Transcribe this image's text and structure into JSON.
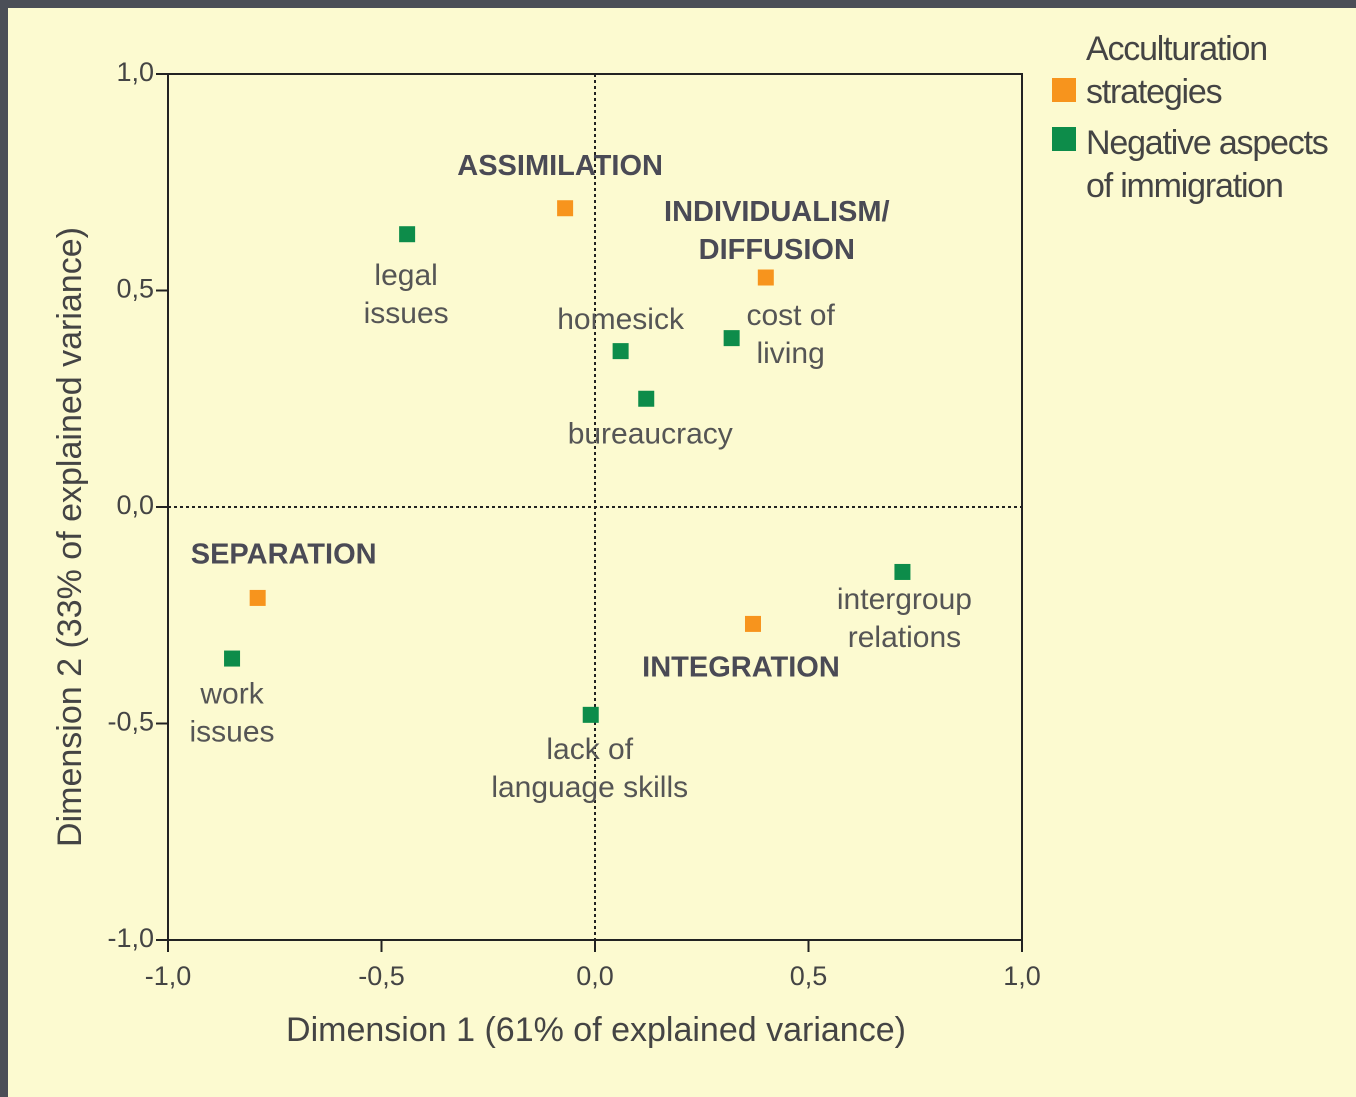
{
  "chart_data": {
    "type": "scatter",
    "x_label": "Dimension 1 (61% of explained variance)",
    "y_label": "Dimension 2 (33% of explained variance)",
    "xlim": [
      -1.0,
      1.0
    ],
    "ylim": [
      -1.0,
      1.0
    ],
    "xticks": [
      {
        "value": -1.0,
        "label": "-1,0"
      },
      {
        "value": -0.5,
        "label": "-0,5"
      },
      {
        "value": 0,
        "label": "0,0"
      },
      {
        "value": 0.5,
        "label": "0,5"
      },
      {
        "value": 1.0,
        "label": "1,0"
      }
    ],
    "yticks": [
      {
        "value": -1.0,
        "label": "-1,0"
      },
      {
        "value": -0.5,
        "label": "-0,5"
      },
      {
        "value": 0,
        "label": "0,0"
      },
      {
        "value": 0.5,
        "label": "0,5"
      },
      {
        "value": 1.0,
        "label": "1,0"
      }
    ],
    "series": [
      {
        "name": "Acculturation strategies",
        "color": "#f7941d",
        "x": [
          -0.07,
          0.4,
          -0.79,
          0.37
        ],
        "y": [
          0.69,
          0.53,
          -0.21,
          -0.27
        ],
        "labels": [
          [
            "ASSIMILATION"
          ],
          [
            "INDIVIDUALISM/",
            "DIFFUSION"
          ],
          [
            "SEPARATION"
          ],
          [
            "INTEGRATION"
          ]
        ]
      },
      {
        "name": "Negative aspects of immigration",
        "color": "#0d8c4a",
        "x": [
          -0.44,
          0.06,
          0.32,
          0.12,
          0.72,
          -0.85,
          -0.01
        ],
        "y": [
          0.63,
          0.36,
          0.39,
          0.25,
          -0.15,
          -0.35,
          -0.48
        ],
        "labels": [
          [
            "legal",
            "issues"
          ],
          [
            "homesick"
          ],
          [
            "cost of",
            "living"
          ],
          [
            "bureaucracy"
          ],
          [
            "intergroup",
            "relations"
          ],
          [
            "work",
            "issues"
          ],
          [
            "lack of",
            "language skills"
          ]
        ]
      }
    ]
  }
}
